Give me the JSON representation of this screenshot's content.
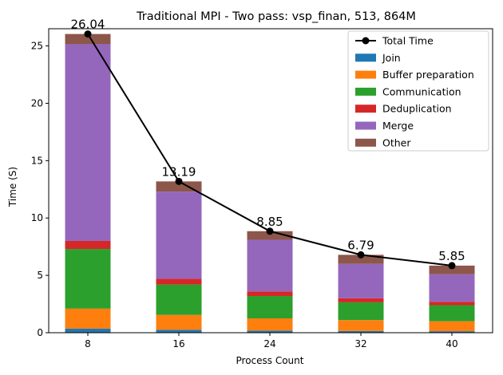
{
  "chart_data": {
    "type": "bar",
    "stacked": true,
    "title": "Traditional MPI - Two pass: vsp_finan, 513, 864M",
    "xlabel": "Process Count",
    "ylabel": "Time (S)",
    "categories": [
      "8",
      "16",
      "24",
      "32",
      "40"
    ],
    "ylim": [
      0,
      26.5
    ],
    "yticks": [
      0,
      5,
      10,
      15,
      20,
      25
    ],
    "grid": false,
    "legend_position": "top-right",
    "series": [
      {
        "name": "Join",
        "color": "#1f77b4",
        "values": [
          0.35,
          0.25,
          0.18,
          0.15,
          0.13
        ]
      },
      {
        "name": "Buffer preparation",
        "color": "#ff7f0e",
        "values": [
          1.75,
          1.3,
          1.07,
          0.95,
          0.87
        ]
      },
      {
        "name": "Communication",
        "color": "#2ca02c",
        "values": [
          5.2,
          2.65,
          1.95,
          1.55,
          1.4
        ]
      },
      {
        "name": "Deduplication",
        "color": "#d62728",
        "values": [
          0.7,
          0.5,
          0.4,
          0.35,
          0.3
        ]
      },
      {
        "name": "Merge",
        "color": "#9467bd",
        "values": [
          17.15,
          7.6,
          4.5,
          3.0,
          2.4
        ]
      },
      {
        "name": "Other",
        "color": "#8c564b",
        "values": [
          0.89,
          0.89,
          0.75,
          0.79,
          0.75
        ]
      }
    ],
    "total": {
      "name": "Total Time",
      "color": "#000000",
      "values": [
        26.04,
        13.19,
        8.85,
        6.79,
        5.85
      ],
      "labels": [
        "26.04",
        "13.19",
        "8.85",
        "6.79",
        "5.85"
      ]
    }
  }
}
